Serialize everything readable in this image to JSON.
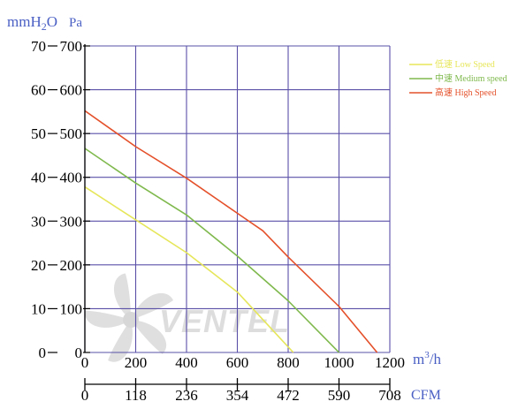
{
  "chart_data": {
    "type": "line",
    "title": "",
    "units": {
      "left_outer": "mmH2O",
      "left_inner": "Pa",
      "x_primary": "m3/h",
      "x_secondary": "CFM"
    },
    "unit_labels": {
      "mmh2o_prefix": "mmH",
      "mmh2o_sub": "2",
      "mmh2o_suffix": "O",
      "pa": "Pa",
      "m3h_prefix": "m",
      "m3h_sup": "3",
      "m3h_suffix": "/h",
      "cfm": "CFM"
    },
    "x_ticks": [
      "0",
      "200",
      "400",
      "600",
      "800",
      "1000",
      "1200"
    ],
    "x_secondary_ticks": [
      "0",
      "118",
      "236",
      "354",
      "472",
      "590",
      "708"
    ],
    "y_pa_ticks": [
      "0",
      "100",
      "200",
      "300",
      "400",
      "500",
      "600",
      "700"
    ],
    "y_mmh2o_ticks": [
      "0",
      "10",
      "20",
      "30",
      "40",
      "50",
      "60",
      "70"
    ],
    "xlim": [
      0,
      1200
    ],
    "ylim": [
      0,
      700
    ],
    "grid": true,
    "legend_position": "top-right",
    "series": [
      {
        "name": "低速 Low Speed",
        "color": "#e6e65a",
        "points": [
          [
            0,
            378
          ],
          [
            200,
            303
          ],
          [
            400,
            228
          ],
          [
            600,
            138
          ],
          [
            820,
            0
          ]
        ]
      },
      {
        "name": "中速 Medium speed",
        "color": "#7fb94d",
        "points": [
          [
            0,
            466
          ],
          [
            200,
            387
          ],
          [
            400,
            314
          ],
          [
            600,
            220
          ],
          [
            800,
            118
          ],
          [
            1000,
            0
          ]
        ]
      },
      {
        "name": "高速 High Speed",
        "color": "#e4502a",
        "points": [
          [
            0,
            552
          ],
          [
            200,
            470
          ],
          [
            400,
            398
          ],
          [
            600,
            318
          ],
          [
            700,
            278
          ],
          [
            800,
            218
          ],
          [
            1000,
            105
          ],
          [
            1150,
            0
          ]
        ]
      }
    ],
    "watermark": "VENTEL"
  }
}
